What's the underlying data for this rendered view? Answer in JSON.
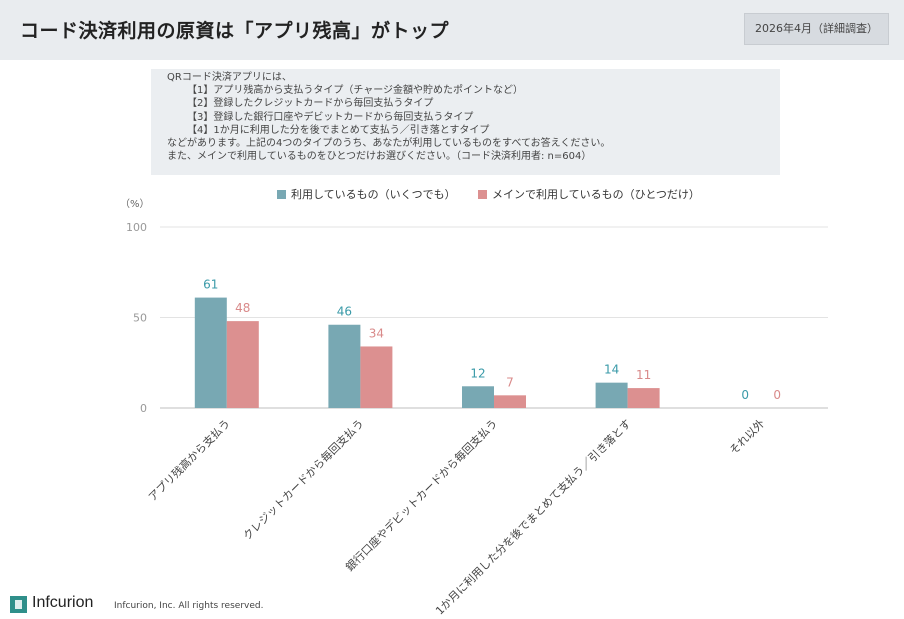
{
  "header": {
    "title": "コード決済利用の原資は「アプリ残高」がトップ",
    "date_badge": "2026年4月（詳細調査）"
  },
  "question": {
    "lines": [
      "QRコード決済アプリには、",
      "【1】アプリ残高から支払うタイプ（チャージ金額や貯めたポイントなど）",
      "【2】登録したクレジットカードから毎回支払うタイプ",
      "【3】登録した銀行口座やデビットカードから毎回支払うタイプ",
      "【4】1か月に利用した分を後でまとめて支払う／引き落とすタイプ",
      "などがあります。上記の4つのタイプのうち、あなたが利用しているものをすべてお答えください。",
      "また、メインで利用しているものをひとつだけお選びください。（コード決済利用者: n=604）"
    ]
  },
  "chart_data": {
    "type": "bar",
    "unit_label": "（%）",
    "categories": [
      "アプリ残高から支払う",
      "クレジットカードから毎回支払う",
      "銀行口座やデビットカードから毎回支払う",
      "1か月に利用した分を後でまとめて支払う／引き落とす",
      "それ以外"
    ],
    "series": [
      {
        "name": "利用しているもの（いくつでも）",
        "values": [
          61,
          46,
          12,
          14,
          0
        ],
        "color": "#78a8b3"
      },
      {
        "name": "メインで利用しているもの（ひとつだけ）",
        "values": [
          48,
          34,
          7,
          11,
          0
        ],
        "color": "#dc9090"
      }
    ],
    "yticks": [
      0,
      50,
      100
    ],
    "ylim": [
      0,
      100
    ],
    "grid": true,
    "legend_position": "top"
  },
  "footer": {
    "logo_text": "Infcurion",
    "copyright": "Infcurion, Inc. All rights reserved."
  },
  "colors": {
    "header_bg": "#e9ecef",
    "series1": "#78a8b3",
    "series2": "#dc9090",
    "label1": "#3a9aa8",
    "label2": "#d98a8a"
  }
}
